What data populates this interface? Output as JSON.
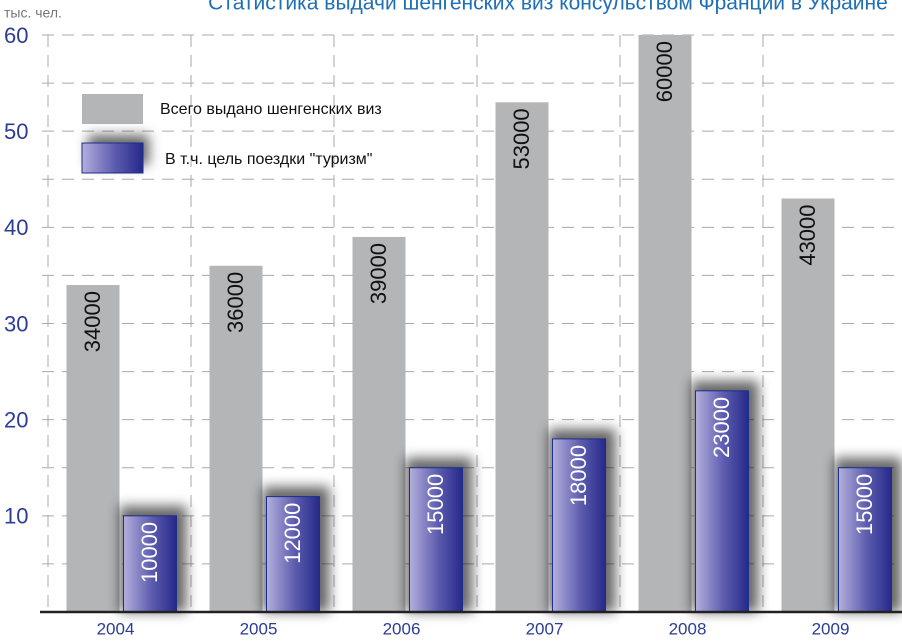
{
  "chart_data": {
    "type": "bar",
    "title": "Статистика выдачи шенгенских виз консульством Франции в Украине",
    "y_label": "тыс. чел.",
    "categories": [
      "2004",
      "2005",
      "2006",
      "2007",
      "2008",
      "2009"
    ],
    "series": [
      {
        "name": "Всего выдано шенгенских виз",
        "color": "#b4b5b7",
        "values": [
          34,
          36,
          39,
          53,
          60,
          43
        ],
        "value_labels": [
          "34000",
          "36000",
          "39000",
          "53000",
          "60000",
          "43000"
        ]
      },
      {
        "name": "В т.ч. цель поездки \"туризм\"",
        "color": "#2b2f8c",
        "values": [
          10,
          12,
          15,
          18,
          23,
          15
        ],
        "value_labels": [
          "10000",
          "12000",
          "15000",
          "18000",
          "23000",
          "15000"
        ]
      }
    ],
    "ylim": [
      0,
      60
    ],
    "yticks": [
      10,
      20,
      30,
      40,
      50,
      60
    ],
    "grid": true
  }
}
